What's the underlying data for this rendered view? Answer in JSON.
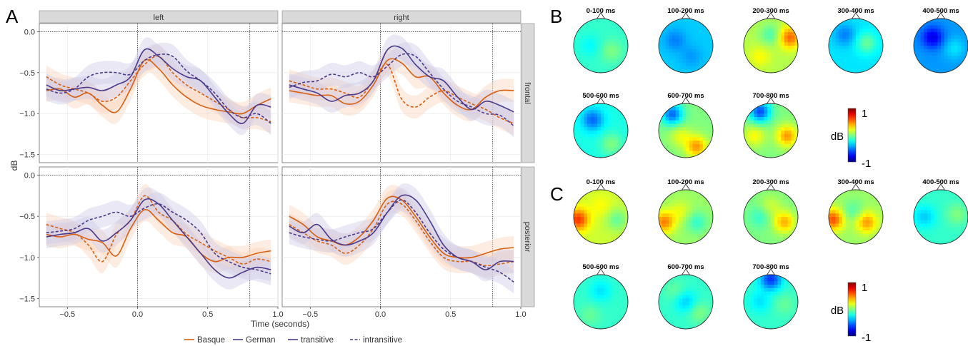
{
  "panel_letters": {
    "a": "A",
    "b": "B",
    "c": "C"
  },
  "chart_data": [
    {
      "type": "line",
      "panel": "A",
      "ylabel": "dB",
      "xlabel": "Time (seconds)",
      "xlim": [
        -0.7,
        1.0
      ],
      "ylim": [
        -1.6,
        0.1
      ],
      "x_ticks": [
        -0.5,
        0.0,
        0.5,
        1.0
      ],
      "x_tick_labels": [
        "−0.5",
        "0.0",
        "0.5",
        "1.0"
      ],
      "y_ticks": [
        0.0,
        -0.5,
        -1.0,
        -1.5
      ],
      "y_tick_labels": [
        "0.0",
        "−0.5",
        "−1.0",
        "−1.5"
      ],
      "grid": true,
      "facet_columns": [
        "left",
        "right"
      ],
      "facet_rows": [
        "frontal",
        "posterior"
      ],
      "vlines": [
        0.0,
        0.8
      ],
      "hline": 0.0,
      "legend": {
        "position": "bottom",
        "language_items": [
          "Basque",
          "German"
        ],
        "structure_items": [
          "transitive",
          "intransitive"
        ]
      },
      "colors": {
        "Basque": "#d95f0e",
        "German": "#4b3a8c",
        "Basque_ribbon": "#fbd5bd",
        "German_ribbon": "#cfcbe6"
      },
      "x": [
        -0.65,
        -0.55,
        -0.45,
        -0.35,
        -0.25,
        -0.15,
        -0.05,
        0.05,
        0.15,
        0.25,
        0.35,
        0.45,
        0.55,
        0.65,
        0.75,
        0.85,
        0.95
      ],
      "panels": [
        {
          "col": "left",
          "row": "frontal",
          "series": [
            {
              "name": "Basque transitive",
              "values": [
                -0.72,
                -0.7,
                -0.8,
                -0.75,
                -0.9,
                -0.98,
                -0.7,
                -0.35,
                -0.45,
                -0.65,
                -0.8,
                -0.9,
                -0.95,
                -0.98,
                -1.0,
                -0.9,
                -0.82
              ]
            },
            {
              "name": "Basque intransitive",
              "values": [
                -0.55,
                -0.65,
                -0.7,
                -0.75,
                -0.85,
                -0.8,
                -0.6,
                -0.4,
                -0.3,
                -0.5,
                -0.65,
                -0.75,
                -0.85,
                -0.95,
                -1.05,
                -1.05,
                -1.1
              ]
            },
            {
              "name": "German transitive",
              "values": [
                -0.65,
                -0.72,
                -0.7,
                -0.68,
                -0.72,
                -0.65,
                -0.55,
                -0.22,
                -0.3,
                -0.45,
                -0.55,
                -0.6,
                -0.8,
                -1.0,
                -1.12,
                -0.9,
                -0.92
              ]
            },
            {
              "name": "German intransitive",
              "values": [
                -0.7,
                -0.75,
                -0.7,
                -0.55,
                -0.5,
                -0.5,
                -0.52,
                -0.35,
                -0.28,
                -0.3,
                -0.48,
                -0.6,
                -0.75,
                -0.95,
                -1.05,
                -1.0,
                -1.12
              ]
            }
          ]
        },
        {
          "col": "right",
          "row": "frontal",
          "series": [
            {
              "name": "Basque transitive",
              "values": [
                -0.72,
                -0.75,
                -0.78,
                -0.78,
                -0.88,
                -0.85,
                -0.65,
                -0.35,
                -0.38,
                -0.55,
                -0.55,
                -0.75,
                -0.9,
                -0.95,
                -0.8,
                -0.72,
                -0.72
              ]
            },
            {
              "name": "Basque intransitive",
              "values": [
                -0.6,
                -0.65,
                -0.7,
                -0.7,
                -0.75,
                -0.8,
                -0.6,
                -0.4,
                -0.82,
                -0.92,
                -0.8,
                -0.72,
                -0.8,
                -0.88,
                -0.95,
                -1.05,
                -1.12
              ]
            },
            {
              "name": "German transitive",
              "values": [
                -0.65,
                -0.7,
                -0.75,
                -0.85,
                -0.78,
                -0.75,
                -0.6,
                -0.22,
                -0.2,
                -0.4,
                -0.55,
                -0.6,
                -0.8,
                -0.95,
                -0.85,
                -0.9,
                -0.98
              ]
            },
            {
              "name": "German intransitive",
              "values": [
                -0.68,
                -0.62,
                -0.6,
                -0.52,
                -0.55,
                -0.5,
                -0.55,
                -0.42,
                -0.28,
                -0.3,
                -0.5,
                -0.7,
                -0.85,
                -0.92,
                -1.0,
                -1.02,
                -1.15
              ]
            }
          ]
        },
        {
          "col": "left",
          "row": "posterior",
          "series": [
            {
              "name": "Basque transitive",
              "values": [
                -0.72,
                -0.75,
                -0.72,
                -0.78,
                -0.82,
                -0.98,
                -0.65,
                -0.42,
                -0.55,
                -0.7,
                -0.75,
                -0.95,
                -1.05,
                -1.0,
                -1.0,
                -0.95,
                -0.92
              ]
            },
            {
              "name": "Basque intransitive",
              "values": [
                -0.6,
                -0.65,
                -0.7,
                -0.85,
                -1.05,
                -0.72,
                -0.55,
                -0.25,
                -0.45,
                -0.55,
                -0.72,
                -0.82,
                -0.92,
                -1.0,
                -1.08,
                -1.02,
                -1.05
              ]
            },
            {
              "name": "German transitive",
              "values": [
                -0.75,
                -0.72,
                -0.7,
                -0.65,
                -0.8,
                -0.7,
                -0.55,
                -0.3,
                -0.35,
                -0.55,
                -0.75,
                -0.95,
                -1.15,
                -1.25,
                -1.18,
                -1.12,
                -1.15
              ]
            },
            {
              "name": "German intransitive",
              "values": [
                -0.7,
                -0.68,
                -0.65,
                -0.55,
                -0.5,
                -0.45,
                -0.5,
                -0.4,
                -0.35,
                -0.45,
                -0.55,
                -0.7,
                -0.95,
                -1.05,
                -1.12,
                -1.15,
                -1.2
              ]
            }
          ]
        },
        {
          "col": "right",
          "row": "posterior",
          "series": [
            {
              "name": "Basque transitive",
              "values": [
                -0.5,
                -0.6,
                -0.75,
                -0.8,
                -0.85,
                -0.75,
                -0.55,
                -0.28,
                -0.3,
                -0.5,
                -0.75,
                -0.95,
                -1.0,
                -1.0,
                -0.95,
                -0.9,
                -0.88
              ]
            },
            {
              "name": "Basque intransitive",
              "values": [
                -0.6,
                -0.7,
                -0.8,
                -0.85,
                -0.95,
                -0.85,
                -0.65,
                -0.35,
                -0.35,
                -0.55,
                -0.8,
                -1.0,
                -1.05,
                -1.05,
                -1.1,
                -1.08,
                -1.05
              ]
            },
            {
              "name": "German transitive",
              "values": [
                -0.62,
                -0.7,
                -0.6,
                -0.78,
                -0.85,
                -0.8,
                -0.7,
                -0.45,
                -0.25,
                -0.3,
                -0.55,
                -0.85,
                -1.0,
                -1.05,
                -1.15,
                -1.05,
                -1.05
              ]
            },
            {
              "name": "German intransitive",
              "values": [
                -0.7,
                -0.75,
                -0.78,
                -0.8,
                -0.75,
                -0.7,
                -0.65,
                -0.45,
                -0.3,
                -0.45,
                -0.7,
                -0.9,
                -1.0,
                -1.05,
                -1.12,
                -1.18,
                -1.3
              ]
            }
          ]
        }
      ]
    },
    {
      "type": "heatmap",
      "panel": "B",
      "colorbar": {
        "label": "dB",
        "max_label": "1",
        "min_label": "-1",
        "range": [
          -1,
          1
        ]
      },
      "maps": [
        {
          "title": "0-100 ms",
          "mean": -0.15,
          "blobs": [
            [
              0.3,
              0.5,
              -0.1
            ],
            [
              0.7,
              0.6,
              0.15
            ]
          ]
        },
        {
          "title": "100-200 ms",
          "mean": -0.35,
          "blobs": [
            [
              0.3,
              0.4,
              -0.15
            ],
            [
              0.6,
              0.7,
              -0.1
            ]
          ]
        },
        {
          "title": "200-300 ms",
          "mean": 0.1,
          "blobs": [
            [
              0.85,
              0.35,
              0.45
            ],
            [
              0.5,
              0.3,
              -0.2
            ],
            [
              0.3,
              0.7,
              0.15
            ]
          ]
        },
        {
          "title": "300-400 ms",
          "mean": -0.3,
          "blobs": [
            [
              0.7,
              0.45,
              0.25
            ],
            [
              0.3,
              0.3,
              -0.2
            ]
          ]
        },
        {
          "title": "400-500 ms",
          "mean": -0.45,
          "blobs": [
            [
              0.35,
              0.35,
              -0.35
            ],
            [
              0.75,
              0.55,
              0.15
            ]
          ]
        },
        {
          "title": "500-600 ms",
          "mean": -0.2,
          "blobs": [
            [
              0.35,
              0.3,
              -0.35
            ],
            [
              0.7,
              0.75,
              0.2
            ]
          ]
        },
        {
          "title": "600-700 ms",
          "mean": 0.0,
          "blobs": [
            [
              0.25,
              0.2,
              -0.55
            ],
            [
              0.7,
              0.8,
              0.45
            ],
            [
              0.4,
              0.6,
              0.2
            ]
          ]
        },
        {
          "title": "700-800 ms",
          "mean": 0.0,
          "blobs": [
            [
              0.3,
              0.15,
              -0.6
            ],
            [
              0.8,
              0.6,
              0.45
            ],
            [
              0.2,
              0.6,
              0.25
            ]
          ]
        }
      ]
    },
    {
      "type": "heatmap",
      "panel": "C",
      "colorbar": {
        "label": "dB",
        "max_label": "1",
        "min_label": "-1",
        "range": [
          -1,
          1
        ]
      },
      "maps": [
        {
          "title": "0-100 ms",
          "mean": 0.15,
          "blobs": [
            [
              0.08,
              0.55,
              0.5
            ],
            [
              0.8,
              0.55,
              -0.2
            ],
            [
              0.5,
              0.3,
              0.1
            ]
          ]
        },
        {
          "title": "100-200 ms",
          "mean": 0.05,
          "blobs": [
            [
              0.1,
              0.6,
              0.45
            ],
            [
              0.7,
              0.6,
              -0.2
            ],
            [
              0.4,
              0.4,
              0.15
            ]
          ]
        },
        {
          "title": "200-300 ms",
          "mean": 0.0,
          "blobs": [
            [
              0.75,
              0.6,
              0.4
            ],
            [
              0.3,
              0.5,
              -0.15
            ],
            [
              0.5,
              0.3,
              0.15
            ]
          ]
        },
        {
          "title": "300-400 ms",
          "mean": 0.05,
          "blobs": [
            [
              0.08,
              0.55,
              0.55
            ],
            [
              0.7,
              0.6,
              0.4
            ],
            [
              0.45,
              0.4,
              -0.15
            ]
          ]
        },
        {
          "title": "400-500 ms",
          "mean": -0.15,
          "blobs": [
            [
              0.2,
              0.5,
              -0.2
            ],
            [
              0.8,
              0.45,
              0.15
            ]
          ]
        },
        {
          "title": "500-600 ms",
          "mean": -0.15,
          "blobs": [
            [
              0.5,
              0.3,
              -0.15
            ],
            [
              0.3,
              0.75,
              0.1
            ]
          ]
        },
        {
          "title": "600-700 ms",
          "mean": -0.15,
          "blobs": [
            [
              0.5,
              0.5,
              -0.2
            ],
            [
              0.3,
              0.3,
              0.1
            ],
            [
              0.75,
              0.7,
              0.15
            ]
          ]
        },
        {
          "title": "700-800 ms",
          "mean": -0.15,
          "blobs": [
            [
              0.5,
              0.08,
              -0.5
            ],
            [
              0.3,
              0.5,
              -0.15
            ],
            [
              0.75,
              0.55,
              0.1
            ]
          ]
        }
      ]
    }
  ]
}
